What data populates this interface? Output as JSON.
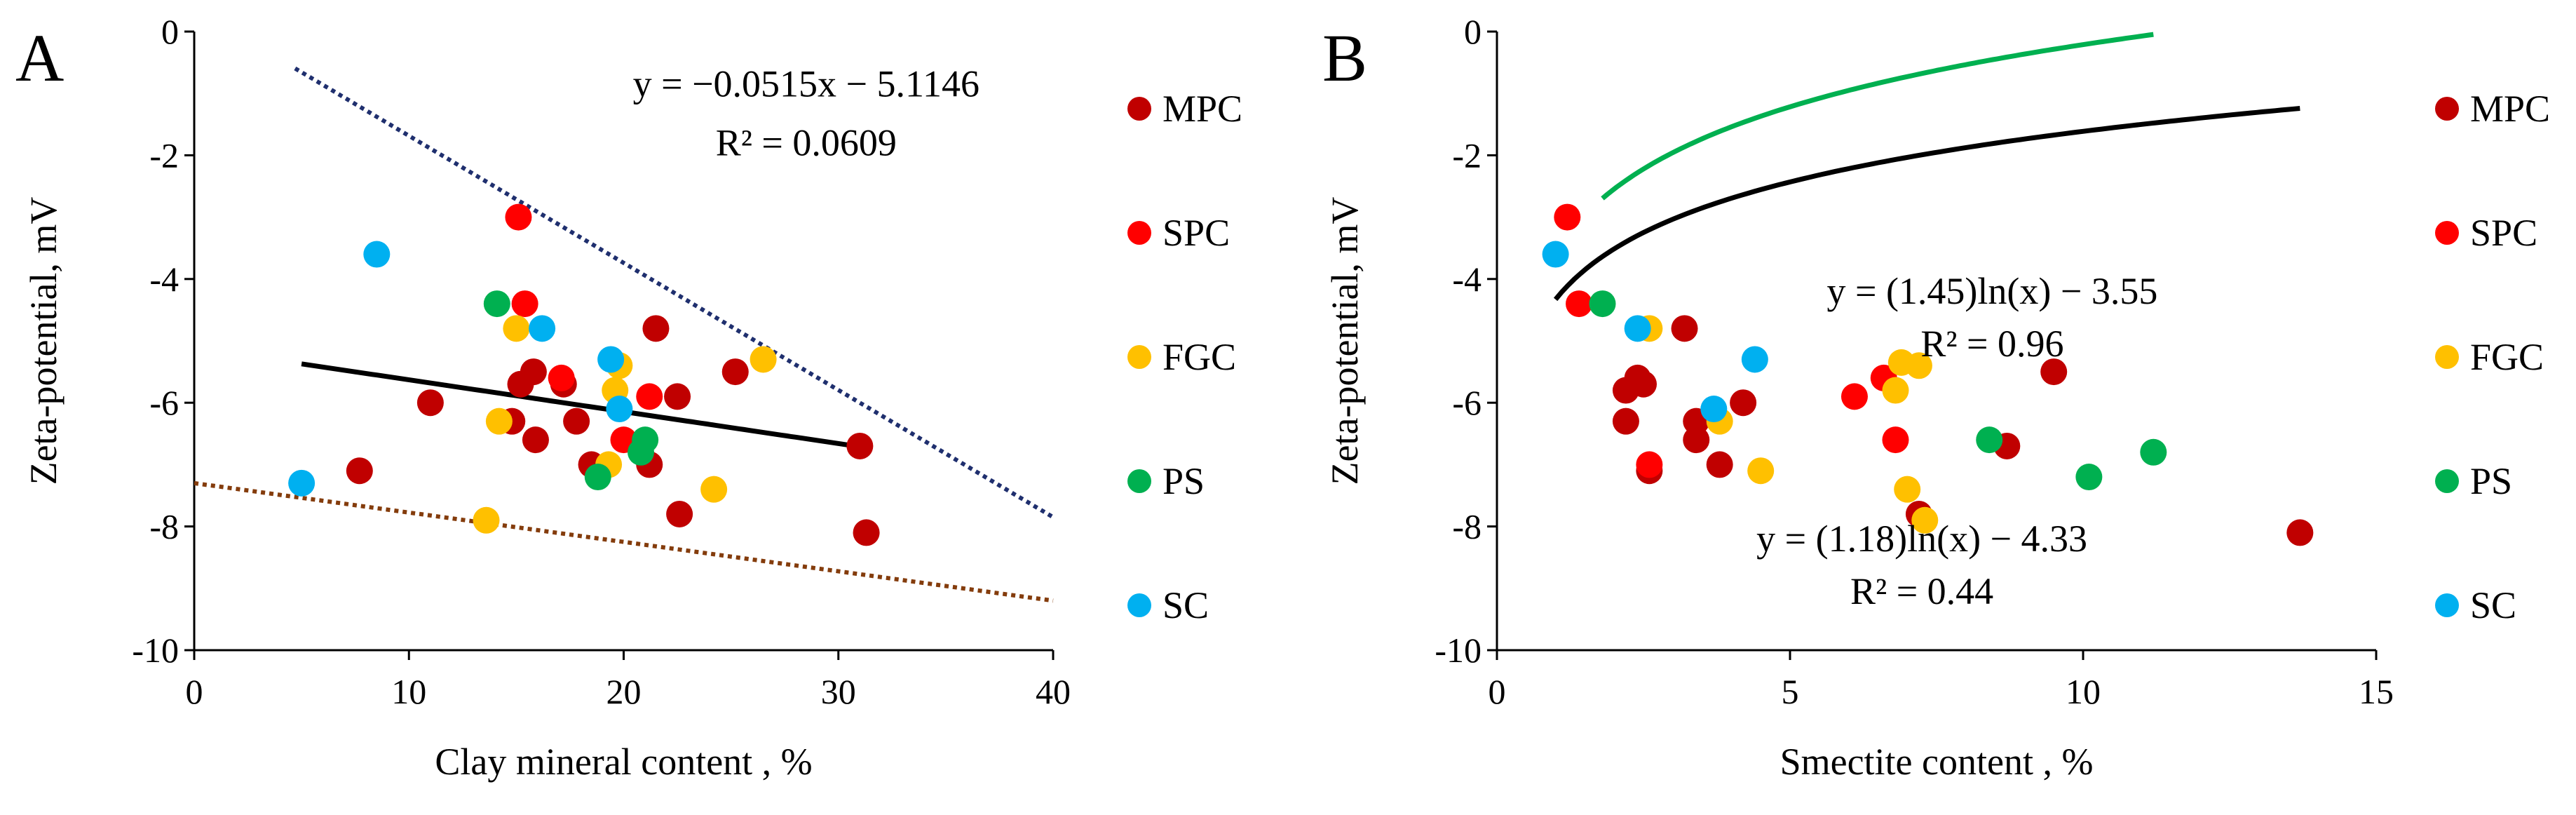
{
  "chart_data": [
    {
      "panel_label": "A",
      "type": "scatter",
      "xlabel": "Clay mineral content , %",
      "ylabel": "Zeta-potential, mV",
      "xlim": [
        0,
        40
      ],
      "ylim": [
        -10,
        0
      ],
      "xticks": [
        0,
        10,
        20,
        30,
        40
      ],
      "yticks": [
        0,
        -2,
        -4,
        -6,
        -8,
        -10
      ],
      "grid": false,
      "legend_position": "right",
      "series": [
        {
          "name": "MPC",
          "color": "#C00000",
          "points": [
            [
              7.7,
              -7.1
            ],
            [
              11,
              -6.0
            ],
            [
              14.8,
              -6.3
            ],
            [
              15.2,
              -5.7
            ],
            [
              15.8,
              -5.5
            ],
            [
              15.9,
              -6.6
            ],
            [
              17.2,
              -5.7
            ],
            [
              17.8,
              -6.3
            ],
            [
              18.5,
              -7.0
            ],
            [
              21.2,
              -7.0
            ],
            [
              21.5,
              -4.8
            ],
            [
              22.5,
              -5.9
            ],
            [
              22.6,
              -7.8
            ],
            [
              25.2,
              -5.5
            ],
            [
              31,
              -6.7
            ],
            [
              31.3,
              -8.1
            ]
          ]
        },
        {
          "name": "SPC",
          "color": "#FF0000",
          "points": [
            [
              15.1,
              -3.0
            ],
            [
              15.4,
              -4.4
            ],
            [
              17.1,
              -5.6
            ],
            [
              20,
              -6.6
            ],
            [
              21.2,
              -5.9
            ]
          ]
        },
        {
          "name": "FGC",
          "color": "#FFC000",
          "points": [
            [
              13.6,
              -7.9
            ],
            [
              14.2,
              -6.3
            ],
            [
              15,
              -4.8
            ],
            [
              19.3,
              -7.0
            ],
            [
              19.6,
              -5.8
            ],
            [
              19.8,
              -5.4
            ],
            [
              24.2,
              -7.4
            ],
            [
              26.5,
              -5.3
            ]
          ]
        },
        {
          "name": "PS",
          "color": "#00B050",
          "points": [
            [
              14.1,
              -4.4
            ],
            [
              18.8,
              -7.2
            ],
            [
              20.8,
              -6.8
            ],
            [
              21,
              -6.6
            ]
          ]
        },
        {
          "name": "SC",
          "color": "#00B0F0",
          "points": [
            [
              5,
              -7.3
            ],
            [
              8.5,
              -3.6
            ],
            [
              16.2,
              -4.8
            ],
            [
              19.4,
              -5.3
            ],
            [
              19.8,
              -6.1
            ]
          ]
        }
      ],
      "trendlines": [
        {
          "kind": "linear",
          "slope": -0.0515,
          "intercept": -5.1146,
          "x_range": [
            5,
            31.3
          ],
          "color": "#000000",
          "style": "solid"
        },
        {
          "kind": "linear",
          "slope": -0.2055,
          "intercept": 0.37,
          "x_range": [
            4.7,
            40
          ],
          "color": "#1F2F6E",
          "style": "dotted"
        },
        {
          "kind": "linear",
          "slope": -0.0475,
          "intercept": -7.3,
          "x_range": [
            0,
            40
          ],
          "color": "#843C0C",
          "style": "dotted"
        }
      ],
      "annotations": [
        {
          "text": "y = −0.0515x − 5.1146",
          "x": 28.5,
          "y": -1.05,
          "color": "#000000"
        },
        {
          "text": "R² = 0.0609",
          "x": 28.5,
          "y": -2.0,
          "color": "#000000"
        }
      ]
    },
    {
      "panel_label": "B",
      "type": "scatter",
      "xlabel": "Smectite content , %",
      "ylabel": "Zeta-potential, mV",
      "xlim": [
        0,
        15
      ],
      "ylim": [
        -10,
        0
      ],
      "xticks": [
        0,
        5,
        10,
        15
      ],
      "yticks": [
        0,
        -2,
        -4,
        -6,
        -8,
        -10
      ],
      "grid": false,
      "legend_position": "right",
      "series": [
        {
          "name": "MPC",
          "color": "#C00000",
          "points": [
            [
              2.2,
              -6.3
            ],
            [
              2.2,
              -5.8
            ],
            [
              2.4,
              -5.6
            ],
            [
              2.5,
              -5.7
            ],
            [
              2.6,
              -7.1
            ],
            [
              3.2,
              -4.8
            ],
            [
              3.4,
              -6.3
            ],
            [
              3.4,
              -6.6
            ],
            [
              3.8,
              -7.0
            ],
            [
              4.2,
              -6.0
            ],
            [
              7.2,
              -7.8
            ],
            [
              8.7,
              -6.7
            ],
            [
              9.5,
              -5.5
            ],
            [
              13.7,
              -8.1
            ]
          ]
        },
        {
          "name": "SPC",
          "color": "#FF0000",
          "points": [
            [
              1.2,
              -3.0
            ],
            [
              1.4,
              -4.4
            ],
            [
              2.6,
              -7.0
            ],
            [
              6.1,
              -5.9
            ],
            [
              6.6,
              -5.6
            ],
            [
              6.8,
              -6.6
            ]
          ]
        },
        {
          "name": "FGC",
          "color": "#FFC000",
          "points": [
            [
              2.6,
              -4.8
            ],
            [
              3.8,
              -6.3
            ],
            [
              4.5,
              -7.1
            ],
            [
              6.8,
              -5.8
            ],
            [
              6.9,
              -5.35
            ],
            [
              7,
              -7.4
            ],
            [
              7.2,
              -5.4
            ],
            [
              7.3,
              -7.9
            ]
          ]
        },
        {
          "name": "PS",
          "color": "#00B050",
          "points": [
            [
              1.8,
              -4.4
            ],
            [
              8.4,
              -6.6
            ],
            [
              10.1,
              -7.2
            ],
            [
              11.2,
              -6.8
            ]
          ]
        },
        {
          "name": "SC",
          "color": "#00B0F0",
          "points": [
            [
              1,
              -3.6
            ],
            [
              2.4,
              -4.8
            ],
            [
              3.7,
              -6.1
            ],
            [
              4.4,
              -5.3
            ]
          ]
        }
      ],
      "trendlines": [
        {
          "kind": "log",
          "a": 1.18,
          "b": -4.33,
          "x_range": [
            1,
            13.7
          ],
          "color": "#000000",
          "style": "solid"
        },
        {
          "kind": "log",
          "a": 1.45,
          "b": -3.55,
          "x_range": [
            1.8,
            11.2
          ],
          "color": "#00B050",
          "style": "solid"
        }
      ],
      "annotations": [
        {
          "text": "y = (1.45)ln(x) − 3.55",
          "x": 8.45,
          "y": -4.4,
          "color": "#00B050"
        },
        {
          "text": "R² = 0.96",
          "x": 8.45,
          "y": -5.25,
          "color": "#00B050"
        },
        {
          "text": "y = (1.18)ln(x) − 4.33",
          "x": 7.25,
          "y": -8.4,
          "color": "#000000"
        },
        {
          "text": "R² = 0.44",
          "x": 7.25,
          "y": -9.25,
          "color": "#000000"
        }
      ]
    }
  ]
}
